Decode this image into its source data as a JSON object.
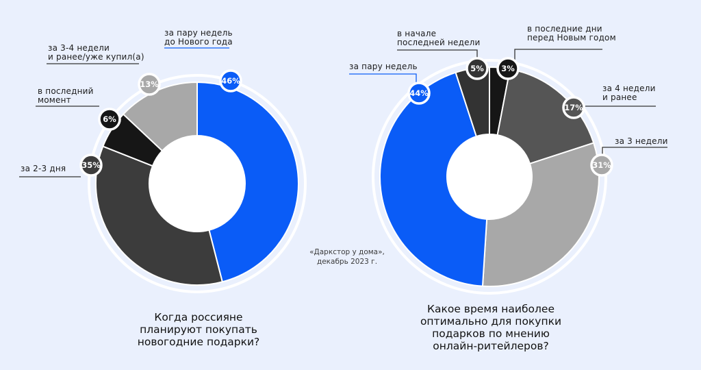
{
  "source": {
    "line1": "«Даркстор у дома»,",
    "line2": "декабрь 2023 г."
  },
  "chart_data": [
    {
      "type": "pie",
      "title_lines": [
        "Когда россияне",
        "планируют покупать",
        "новогодние подарки?"
      ],
      "slices": [
        {
          "label_lines": [
            "за пару недель",
            "до Нового года"
          ],
          "value": 46,
          "color": "#0a5cf7",
          "pct": "46%"
        },
        {
          "label_lines": [
            "за 2-3 дня"
          ],
          "value": 35,
          "color": "#3c3c3c",
          "pct": "35%"
        },
        {
          "label_lines": [
            "в последний",
            "момент"
          ],
          "value": 6,
          "color": "#161616",
          "pct": "6%"
        },
        {
          "label_lines": [
            "за 3-4 недели",
            "и ранее/уже купил(а)"
          ],
          "value": 13,
          "color": "#a8a8a8",
          "pct": "13%"
        }
      ]
    },
    {
      "type": "pie",
      "title_lines": [
        "Какое время наиболее",
        "оптимально для покупки",
        "подарков по мнению",
        "онлайн-ритейлеров?"
      ],
      "slices": [
        {
          "label_lines": [
            "в последние дни",
            "перед Новым годом"
          ],
          "value": 3,
          "color": "#161616",
          "pct": "3%"
        },
        {
          "label_lines": [
            "за 4 недели",
            "и ранее"
          ],
          "value": 17,
          "color": "#555555",
          "pct": "17%"
        },
        {
          "label_lines": [
            "за 3 недели"
          ],
          "value": 31,
          "color": "#a8a8a8",
          "pct": "31%"
        },
        {
          "label_lines": [
            "за пару недель"
          ],
          "value": 44,
          "color": "#0a5cf7",
          "pct": "44%"
        },
        {
          "label_lines": [
            "в начале",
            "последней недели"
          ],
          "value": 5,
          "color": "#333333",
          "pct": "5%"
        }
      ]
    }
  ]
}
